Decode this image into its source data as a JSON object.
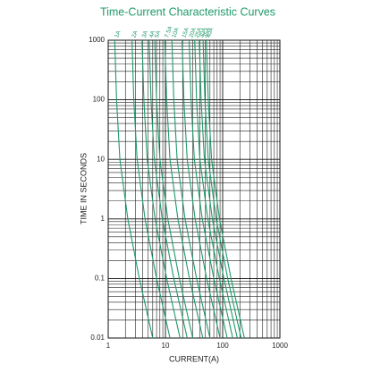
{
  "chart_data": {
    "type": "line",
    "title": "Time-Current Characteristic Curves",
    "xlabel": "CURRENT(A)",
    "ylabel": "TIME IN SECONDS",
    "xlog": true,
    "ylog": true,
    "grid": true,
    "color": "#1f9a6a",
    "xlim": [
      1,
      1000
    ],
    "xticks": [
      1,
      10,
      100,
      1000
    ],
    "ylim": [
      0.01,
      1000
    ],
    "yticks": [
      1000,
      100,
      10,
      1,
      0.1,
      0.01
    ],
    "series": [
      {
        "name": "1A",
        "x": [
          1.3,
          1.4,
          1.6,
          2.2,
          3.5,
          6
        ],
        "values": [
          1000,
          100,
          10,
          1,
          0.1,
          0.01
        ]
      },
      {
        "name": "2A",
        "x": [
          2.6,
          2.8,
          3.2,
          4.4,
          7,
          12
        ],
        "values": [
          1000,
          100,
          10,
          1,
          0.1,
          0.01
        ]
      },
      {
        "name": "3A",
        "x": [
          3.9,
          4.2,
          4.8,
          6.6,
          10.5,
          18
        ],
        "values": [
          1000,
          100,
          10,
          1,
          0.1,
          0.01
        ]
      },
      {
        "name": "4A",
        "x": [
          5.2,
          5.6,
          6.4,
          8.8,
          14,
          24
        ],
        "values": [
          1000,
          100,
          10,
          1,
          0.1,
          0.01
        ]
      },
      {
        "name": "5A",
        "x": [
          6.5,
          7,
          8,
          11,
          17.5,
          30
        ],
        "values": [
          1000,
          100,
          10,
          1,
          0.1,
          0.01
        ]
      },
      {
        "name": "7.5A",
        "x": [
          9.75,
          10.5,
          12,
          16.5,
          26.25,
          45
        ],
        "values": [
          1000,
          100,
          10,
          1,
          0.1,
          0.01
        ]
      },
      {
        "name": "10A",
        "x": [
          13,
          14,
          16,
          22,
          35,
          60
        ],
        "values": [
          1000,
          100,
          10,
          1,
          0.1,
          0.01
        ]
      },
      {
        "name": "15A",
        "x": [
          19.5,
          21,
          24,
          33,
          52.5,
          90
        ],
        "values": [
          1000,
          100,
          10,
          1,
          0.1,
          0.01
        ]
      },
      {
        "name": "20A",
        "x": [
          26,
          28,
          32,
          44,
          70,
          120
        ],
        "values": [
          1000,
          100,
          10,
          1,
          0.1,
          0.01
        ]
      },
      {
        "name": "25A",
        "x": [
          32.5,
          35,
          40,
          55,
          87.5,
          150
        ],
        "values": [
          1000,
          100,
          10,
          1,
          0.1,
          0.01
        ]
      },
      {
        "name": "30A",
        "x": [
          39,
          42,
          48,
          66,
          105,
          180
        ],
        "values": [
          1000,
          100,
          10,
          1,
          0.1,
          0.01
        ]
      },
      {
        "name": "35A",
        "x": [
          45.5,
          49,
          56,
          77,
          122.5,
          210
        ],
        "values": [
          1000,
          100,
          10,
          1,
          0.1,
          0.01
        ]
      },
      {
        "name": "40A",
        "x": [
          52,
          56,
          64,
          88,
          140,
          240
        ],
        "values": [
          1000,
          100,
          10,
          1,
          0.1,
          0.01
        ]
      }
    ]
  }
}
